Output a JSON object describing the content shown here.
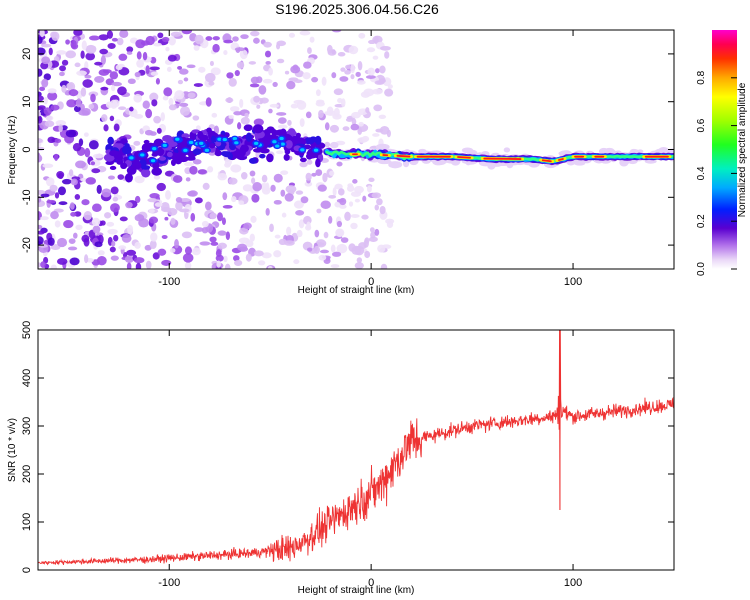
{
  "title": "S196.2025.306.04.56.C26",
  "chart_data": [
    {
      "type": "heatmap",
      "xlabel": "Height of straight line (km)",
      "ylabel": "Frequency (Hz)",
      "xlim": [
        -165,
        150
      ],
      "ylim": [
        -25,
        25
      ],
      "x_ticks": [
        -100,
        0,
        100
      ],
      "y_ticks": [
        -20,
        -10,
        0,
        10,
        20
      ],
      "colorbar": {
        "label": "Normalized spectral amplitude",
        "range": [
          0.0,
          1.0
        ],
        "ticks": [
          "0.0",
          "0.2",
          "0.4",
          "0.6",
          "0.8"
        ]
      },
      "ridge": {
        "description_points_x": [
          -120,
          -100,
          -80,
          -60,
          -45,
          -30,
          -15,
          0,
          20,
          40,
          60,
          80,
          90,
          100,
          120,
          150
        ],
        "description_points_y": [
          -3,
          0,
          2,
          1,
          2,
          0,
          -1,
          -1,
          -1.5,
          -1.5,
          -2,
          -2,
          -2.5,
          -1.5,
          -1.5,
          -1.5
        ]
      }
    },
    {
      "type": "line",
      "xlabel": "Height of straight line (km)",
      "ylabel": "SNR (10 * v/v)",
      "xlim": [
        -165,
        150
      ],
      "ylim": [
        0,
        500
      ],
      "x_ticks": [
        -100,
        0,
        100
      ],
      "y_ticks": [
        0,
        100,
        200,
        300,
        400,
        500
      ],
      "color": "#ee3333",
      "envelope_x": [
        -165,
        -140,
        -110,
        -80,
        -60,
        -40,
        -30,
        -20,
        -10,
        0,
        5,
        10,
        15,
        20,
        30,
        50,
        70,
        90,
        95,
        100,
        120,
        140,
        150
      ],
      "envelope_mean": [
        15,
        18,
        22,
        30,
        35,
        45,
        70,
        100,
        130,
        160,
        180,
        210,
        240,
        270,
        280,
        300,
        310,
        320,
        330,
        320,
        330,
        340,
        345
      ],
      "spike": {
        "x": 93.5,
        "max": 500,
        "min": 125
      }
    }
  ]
}
